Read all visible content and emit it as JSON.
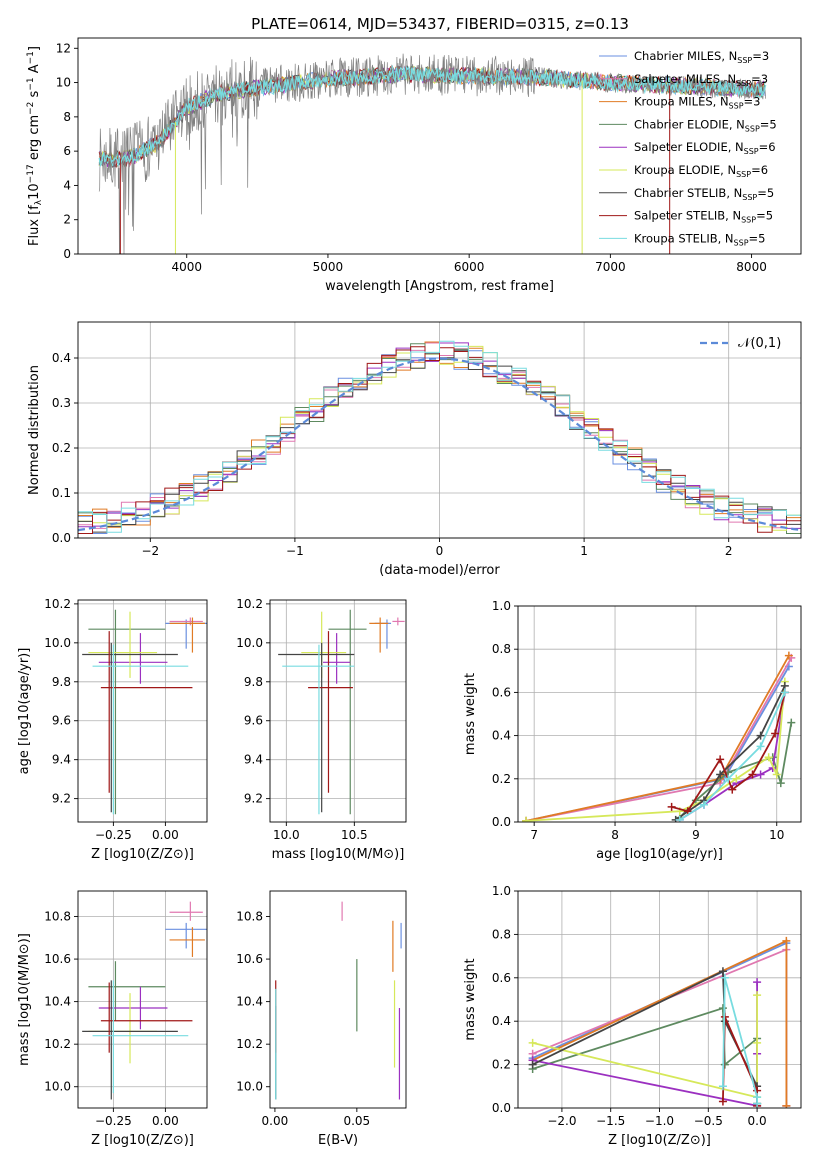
{
  "figure_title": "PLATE=0614, MJD=53437, FIBERID=0315, z=0.13",
  "colors": {
    "Chabrier MILES": "#6a8fe0",
    "Salpeter MILES": "#e078b0",
    "Kroupa MILES": "#e07b25",
    "Chabrier ELODIE": "#5e8a60",
    "Salpeter ELODIE": "#9b30c0",
    "Kroupa ELODIE": "#d6e85a",
    "Chabrier STELIB": "#444444",
    "Salpeter STELIB": "#a01818",
    "Kroupa STELIB": "#78dce0",
    "data": "#808080",
    "normal": "#5b8ad8"
  },
  "chart_data": [
    {
      "id": "spectrum",
      "type": "line",
      "xlabel": "wavelength [Angstrom, rest frame]",
      "ylabel": "Flux [f_λ10^-17 erg cm^-2 s^-1 A^-1]",
      "xlim": [
        3230,
        8350
      ],
      "ylim": [
        0,
        12.6
      ],
      "xticks": [
        4000,
        5000,
        6000,
        7000,
        8000
      ],
      "yticks": [
        0,
        2,
        4,
        6,
        8,
        10,
        12
      ],
      "legend": {
        "placement": "right",
        "entries": [
          {
            "model": "Chabrier MILES",
            "n": "3"
          },
          {
            "model": "Salpeter MILES",
            "n": "3"
          },
          {
            "model": "Kroupa MILES",
            "n": "3"
          },
          {
            "model": "Chabrier ELODIE",
            "n": "5"
          },
          {
            "model": "Salpeter ELODIE",
            "n": "6"
          },
          {
            "model": "Kroupa ELODIE",
            "n": "6"
          },
          {
            "model": "Chabrier STELIB",
            "n": "5"
          },
          {
            "model": "Salpeter STELIB",
            "n": "5"
          },
          {
            "model": "Kroupa STELIB",
            "n": "5"
          }
        ]
      },
      "data_trend": {
        "x": [
          3380,
          3600,
          3800,
          4000,
          4200,
          4400,
          4600,
          5000,
          5500,
          6000,
          6500,
          7000,
          7500,
          8000,
          8100
        ],
        "y": [
          5.5,
          5.6,
          6.5,
          8.5,
          9.3,
          9.6,
          9.8,
          10.2,
          10.5,
          10.4,
          10.3,
          10.0,
          9.8,
          9.6,
          9.6
        ]
      },
      "cutoffs": [
        {
          "model": "Salpeter STELIB",
          "x": 3530
        },
        {
          "model": "Kroupa ELODIE",
          "x": 3920
        },
        {
          "model": "Kroupa ELODIE",
          "x": 6800
        },
        {
          "model": "Salpeter STELIB",
          "x": 7420
        }
      ]
    },
    {
      "id": "residual-histogram",
      "type": "histogram",
      "xlabel": "(data-model)/error",
      "ylabel": "Normed distribution",
      "xlim": [
        -2.5,
        2.5
      ],
      "ylim": [
        0,
        0.48
      ],
      "xticks": [
        -2,
        -1,
        0,
        1,
        2
      ],
      "yticks": [
        0.0,
        0.1,
        0.2,
        0.3,
        0.4
      ],
      "legend": {
        "placement": "top-right",
        "label": "𝒩(0,1)"
      },
      "grid": true
    },
    {
      "id": "age-vs-Z",
      "type": "errorbar",
      "xlabel": "Z [log10(Z/Z⊙)]",
      "ylabel": "age  [log10(age/yr)]",
      "xlim": [
        -0.42,
        0.2
      ],
      "ylim": [
        9.08,
        10.22
      ],
      "xticks": [
        -0.25,
        0.0
      ],
      "yticks": [
        9.2,
        9.4,
        9.6,
        9.8,
        10.0,
        10.2
      ],
      "grid": true,
      "points": [
        {
          "model": "Chabrier MILES",
          "x": 0.1,
          "xerr": [
            0.1,
            0.12
          ],
          "y": 10.1,
          "yerr": [
            0.13,
            0.02
          ]
        },
        {
          "model": "Salpeter MILES",
          "x": 0.12,
          "xerr": [
            0.1,
            0.06
          ],
          "y": 10.11,
          "yerr": [
            0.02,
            0.02
          ]
        },
        {
          "model": "Kroupa MILES",
          "x": 0.13,
          "xerr": [
            0.11,
            0.06
          ],
          "y": 10.1,
          "yerr": [
            0.15,
            0.03
          ]
        },
        {
          "model": "Chabrier ELODIE",
          "x": -0.24,
          "xerr": [
            0.13,
            0.24
          ],
          "y": 10.07,
          "yerr": [
            0.95,
            0.1
          ]
        },
        {
          "model": "Salpeter ELODIE",
          "x": -0.12,
          "xerr": [
            0.2,
            0.13
          ],
          "y": 9.9,
          "yerr": [
            0.11,
            0.15
          ]
        },
        {
          "model": "Kroupa ELODIE",
          "x": -0.17,
          "xerr": [
            0.2,
            0.13
          ],
          "y": 9.95,
          "yerr": [
            0.13,
            0.21
          ]
        },
        {
          "model": "Chabrier STELIB",
          "x": -0.26,
          "xerr": [
            0.14,
            0.32
          ],
          "y": 9.94,
          "yerr": [
            0.81,
            0.06
          ]
        },
        {
          "model": "Salpeter STELIB",
          "x": -0.27,
          "xerr": [
            0.04,
            0.4
          ],
          "y": 9.77,
          "yerr": [
            0.54,
            0.29
          ]
        },
        {
          "model": "Kroupa STELIB",
          "x": -0.25,
          "xerr": [
            0.1,
            0.36
          ],
          "y": 9.88,
          "yerr": [
            0.76,
            0.11
          ]
        }
      ]
    },
    {
      "id": "age-vs-mass",
      "type": "errorbar",
      "xlabel": "mass [log10(M/M⊙)]",
      "ylabel": "",
      "xlim": [
        9.88,
        10.88
      ],
      "ylim": [
        9.08,
        10.22
      ],
      "xticks": [
        10.0,
        10.5
      ],
      "yticks": [
        9.2,
        9.4,
        9.6,
        9.8,
        10.0,
        10.2
      ],
      "grid": true,
      "points": [
        {
          "model": "Chabrier MILES",
          "x": 10.74,
          "xerr": [
            0.09,
            0.03
          ],
          "y": 10.1,
          "yerr": [
            0.13,
            0.02
          ]
        },
        {
          "model": "Salpeter MILES",
          "x": 10.82,
          "xerr": [
            0.04,
            0.05
          ],
          "y": 10.11,
          "yerr": [
            0.02,
            0.02
          ]
        },
        {
          "model": "Kroupa MILES",
          "x": 10.69,
          "xerr": [
            0.08,
            0.06
          ],
          "y": 10.1,
          "yerr": [
            0.15,
            0.03
          ]
        },
        {
          "model": "Chabrier ELODIE",
          "x": 10.47,
          "xerr": [
            0.16,
            0.12
          ],
          "y": 10.07,
          "yerr": [
            0.95,
            0.1
          ]
        },
        {
          "model": "Salpeter ELODIE",
          "x": 10.37,
          "xerr": [
            0.1,
            0.1
          ],
          "y": 9.9,
          "yerr": [
            0.11,
            0.15
          ]
        },
        {
          "model": "Kroupa ELODIE",
          "x": 10.26,
          "xerr": [
            0.15,
            0.18
          ],
          "y": 9.95,
          "yerr": [
            0.13,
            0.21
          ]
        },
        {
          "model": "Chabrier STELIB",
          "x": 10.26,
          "xerr": [
            0.32,
            0.24
          ],
          "y": 9.94,
          "yerr": [
            0.81,
            0.06
          ]
        },
        {
          "model": "Salpeter STELIB",
          "x": 10.31,
          "xerr": [
            0.15,
            0.18
          ],
          "y": 9.77,
          "yerr": [
            0.54,
            0.29
          ]
        },
        {
          "model": "Kroupa STELIB",
          "x": 10.24,
          "xerr": [
            0.27,
            0.26
          ],
          "y": 9.88,
          "yerr": [
            0.76,
            0.11
          ]
        }
      ]
    },
    {
      "id": "mass-weight-vs-age",
      "type": "line",
      "xlabel": "age  [log10(age/yr)]",
      "ylabel": "mass weight",
      "xlim": [
        6.8,
        10.3
      ],
      "ylim": [
        0,
        1.0
      ],
      "xticks": [
        7,
        8,
        9,
        10
      ],
      "yticks": [
        0.0,
        0.2,
        0.4,
        0.6,
        0.8,
        1.0
      ],
      "grid": true,
      "series": [
        {
          "model": "Chabrier MILES",
          "x": [
            6.9,
            9.35,
            10.15
          ],
          "y": [
            0.005,
            0.2,
            0.72
          ]
        },
        {
          "model": "Salpeter MILES",
          "x": [
            6.9,
            9.3,
            10.18
          ],
          "y": [
            0.005,
            0.18,
            0.76
          ]
        },
        {
          "model": "Kroupa MILES",
          "x": [
            6.9,
            9.3,
            10.15
          ],
          "y": [
            0.005,
            0.2,
            0.77
          ]
        },
        {
          "model": "Chabrier ELODIE",
          "x": [
            8.8,
            9.0,
            9.4,
            9.95,
            10.05,
            10.18
          ],
          "y": [
            0.02,
            0.1,
            0.23,
            0.3,
            0.18,
            0.46
          ]
        },
        {
          "model": "Salpeter ELODIE",
          "x": [
            8.8,
            9.1,
            9.5,
            9.8,
            9.95,
            10.1
          ],
          "y": [
            0.01,
            0.08,
            0.18,
            0.22,
            0.25,
            0.6
          ]
        },
        {
          "model": "Kroupa ELODIE",
          "x": [
            6.9,
            8.8,
            9.1,
            9.5,
            9.9,
            10.0,
            10.1
          ],
          "y": [
            0.005,
            0.05,
            0.1,
            0.2,
            0.3,
            0.22,
            0.65
          ]
        },
        {
          "model": "Chabrier STELIB",
          "x": [
            8.75,
            9.1,
            9.3,
            9.8,
            10.1
          ],
          "y": [
            0.01,
            0.1,
            0.22,
            0.4,
            0.63
          ]
        },
        {
          "model": "Salpeter STELIB",
          "x": [
            8.7,
            8.9,
            9.3,
            9.45,
            9.7,
            9.98,
            10.1
          ],
          "y": [
            0.07,
            0.05,
            0.29,
            0.15,
            0.22,
            0.41,
            0.6
          ]
        },
        {
          "model": "Kroupa STELIB",
          "x": [
            8.8,
            9.1,
            9.4,
            9.8,
            10.1
          ],
          "y": [
            0.01,
            0.08,
            0.2,
            0.35,
            0.6
          ]
        }
      ]
    },
    {
      "id": "mass-vs-Z",
      "type": "errorbar",
      "xlabel": "Z [log10(Z/Z⊙)]",
      "ylabel": "mass [log10(M/M⊙)]",
      "xlim": [
        -0.42,
        0.2
      ],
      "ylim": [
        9.9,
        10.92
      ],
      "xticks": [
        -0.25,
        0.0
      ],
      "yticks": [
        10.0,
        10.2,
        10.4,
        10.6,
        10.8
      ],
      "grid": true,
      "points": [
        {
          "model": "Chabrier MILES",
          "x": 0.1,
          "xerr": [
            0.1,
            0.12
          ],
          "y": 10.74,
          "yerr": [
            0.09,
            0.03
          ]
        },
        {
          "model": "Salpeter MILES",
          "x": 0.12,
          "xerr": [
            0.1,
            0.06
          ],
          "y": 10.82,
          "yerr": [
            0.04,
            0.05
          ]
        },
        {
          "model": "Kroupa MILES",
          "x": 0.13,
          "xerr": [
            0.11,
            0.06
          ],
          "y": 10.69,
          "yerr": [
            0.08,
            0.06
          ]
        },
        {
          "model": "Chabrier ELODIE",
          "x": -0.24,
          "xerr": [
            0.13,
            0.24
          ],
          "y": 10.47,
          "yerr": [
            0.16,
            0.12
          ]
        },
        {
          "model": "Salpeter ELODIE",
          "x": -0.12,
          "xerr": [
            0.2,
            0.13
          ],
          "y": 10.37,
          "yerr": [
            0.1,
            0.1
          ]
        },
        {
          "model": "Kroupa ELODIE",
          "x": -0.17,
          "xerr": [
            0.2,
            0.13
          ],
          "y": 10.26,
          "yerr": [
            0.15,
            0.18
          ]
        },
        {
          "model": "Chabrier STELIB",
          "x": -0.26,
          "xerr": [
            0.14,
            0.32
          ],
          "y": 10.26,
          "yerr": [
            0.32,
            0.24
          ]
        },
        {
          "model": "Salpeter STELIB",
          "x": -0.27,
          "xerr": [
            0.04,
            0.4
          ],
          "y": 10.31,
          "yerr": [
            0.15,
            0.18
          ]
        },
        {
          "model": "Kroupa STELIB",
          "x": -0.25,
          "xerr": [
            0.1,
            0.36
          ],
          "y": 10.24,
          "yerr": [
            0.27,
            0.26
          ]
        }
      ]
    },
    {
      "id": "mass-vs-EBV",
      "type": "errorbar",
      "xlabel": "E(B-V)",
      "ylabel": "",
      "xlim": [
        -0.003,
        0.08
      ],
      "ylim": [
        9.9,
        10.92
      ],
      "xticks": [
        0.0,
        0.05
      ],
      "xticklabels": [
        "0.00",
        "0.05"
      ],
      "yticks": [
        10.0,
        10.2,
        10.4,
        10.6,
        10.8
      ],
      "grid": false,
      "points": [
        {
          "model": "Chabrier MILES",
          "x": 0.077,
          "y": 10.74,
          "yerr": [
            0.09,
            0.03
          ]
        },
        {
          "model": "Salpeter MILES",
          "x": 0.041,
          "y": 10.82,
          "yerr": [
            0.04,
            0.05
          ]
        },
        {
          "model": "Kroupa MILES",
          "x": 0.072,
          "y": 10.69,
          "yerr": [
            0.15,
            0.09
          ]
        },
        {
          "model": "Chabrier ELODIE",
          "x": 0.05,
          "y": 10.47,
          "yerr": [
            0.21,
            0.13
          ]
        },
        {
          "model": "Salpeter ELODIE",
          "x": 0.076,
          "y": 10.37,
          "yerr": [
            0.43,
            0.0
          ]
        },
        {
          "model": "Kroupa ELODIE",
          "x": 0.073,
          "y": 10.26,
          "yerr": [
            0.17,
            0.24
          ]
        },
        {
          "model": "Chabrier STELIB",
          "x": 0.0005,
          "y": 10.26,
          "yerr": [
            0.32,
            0.12
          ]
        },
        {
          "model": "Salpeter STELIB",
          "x": 0.0005,
          "y": 10.31,
          "yerr": [
            0.15,
            0.19
          ]
        },
        {
          "model": "Kroupa STELIB",
          "x": 0.0005,
          "y": 10.24,
          "yerr": [
            0.3,
            0.22
          ]
        }
      ]
    },
    {
      "id": "mass-weight-vs-Z",
      "type": "line",
      "xlabel": "Z [log10(Z/Z⊙)]",
      "ylabel": "mass weight",
      "xlim": [
        -2.45,
        0.45
      ],
      "ylim": [
        0,
        1.0
      ],
      "xticks": [
        -2.0,
        -1.5,
        -1.0,
        -0.5,
        0.0
      ],
      "yticks": [
        0.0,
        0.2,
        0.4,
        0.6,
        0.8,
        1.0
      ],
      "grid": true,
      "series": [
        {
          "model": "Chabrier MILES",
          "x": [
            -2.3,
            0.3,
            0.3
          ],
          "y": [
            0.23,
            0.76,
            0.01
          ]
        },
        {
          "model": "Salpeter MILES",
          "x": [
            -2.3,
            0.3,
            0.3
          ],
          "y": [
            0.25,
            0.73,
            0.01
          ]
        },
        {
          "model": "Kroupa MILES",
          "x": [
            -2.3,
            0.3,
            0.3
          ],
          "y": [
            0.22,
            0.77,
            0.01
          ]
        },
        {
          "model": "Chabrier ELODIE",
          "x": [
            -2.3,
            -0.35,
            -0.33,
            0.0,
            0.0
          ],
          "y": [
            0.18,
            0.46,
            0.2,
            0.32,
            0.02
          ]
        },
        {
          "model": "Salpeter ELODIE",
          "x": [
            -2.3,
            0.0,
            0.0,
            0.0
          ],
          "y": [
            0.22,
            0.01,
            0.25,
            0.58
          ]
        },
        {
          "model": "Kroupa ELODIE",
          "x": [
            -2.3,
            0.0,
            0.0,
            0.0
          ],
          "y": [
            0.3,
            0.05,
            0.3,
            0.52
          ]
        },
        {
          "model": "Chabrier STELIB",
          "x": [
            -2.3,
            -0.35,
            -0.33,
            0.0,
            0.0
          ],
          "y": [
            0.2,
            0.63,
            0.4,
            0.1,
            0.02
          ]
        },
        {
          "model": "Salpeter STELIB",
          "x": [
            -0.35,
            -0.33,
            0.0,
            0.0
          ],
          "y": [
            0.03,
            0.42,
            0.08,
            0.01
          ]
        },
        {
          "model": "Kroupa STELIB",
          "x": [
            -0.35,
            -0.33,
            0.0,
            0.0
          ],
          "y": [
            0.1,
            0.6,
            0.05,
            0.02
          ]
        }
      ]
    }
  ]
}
